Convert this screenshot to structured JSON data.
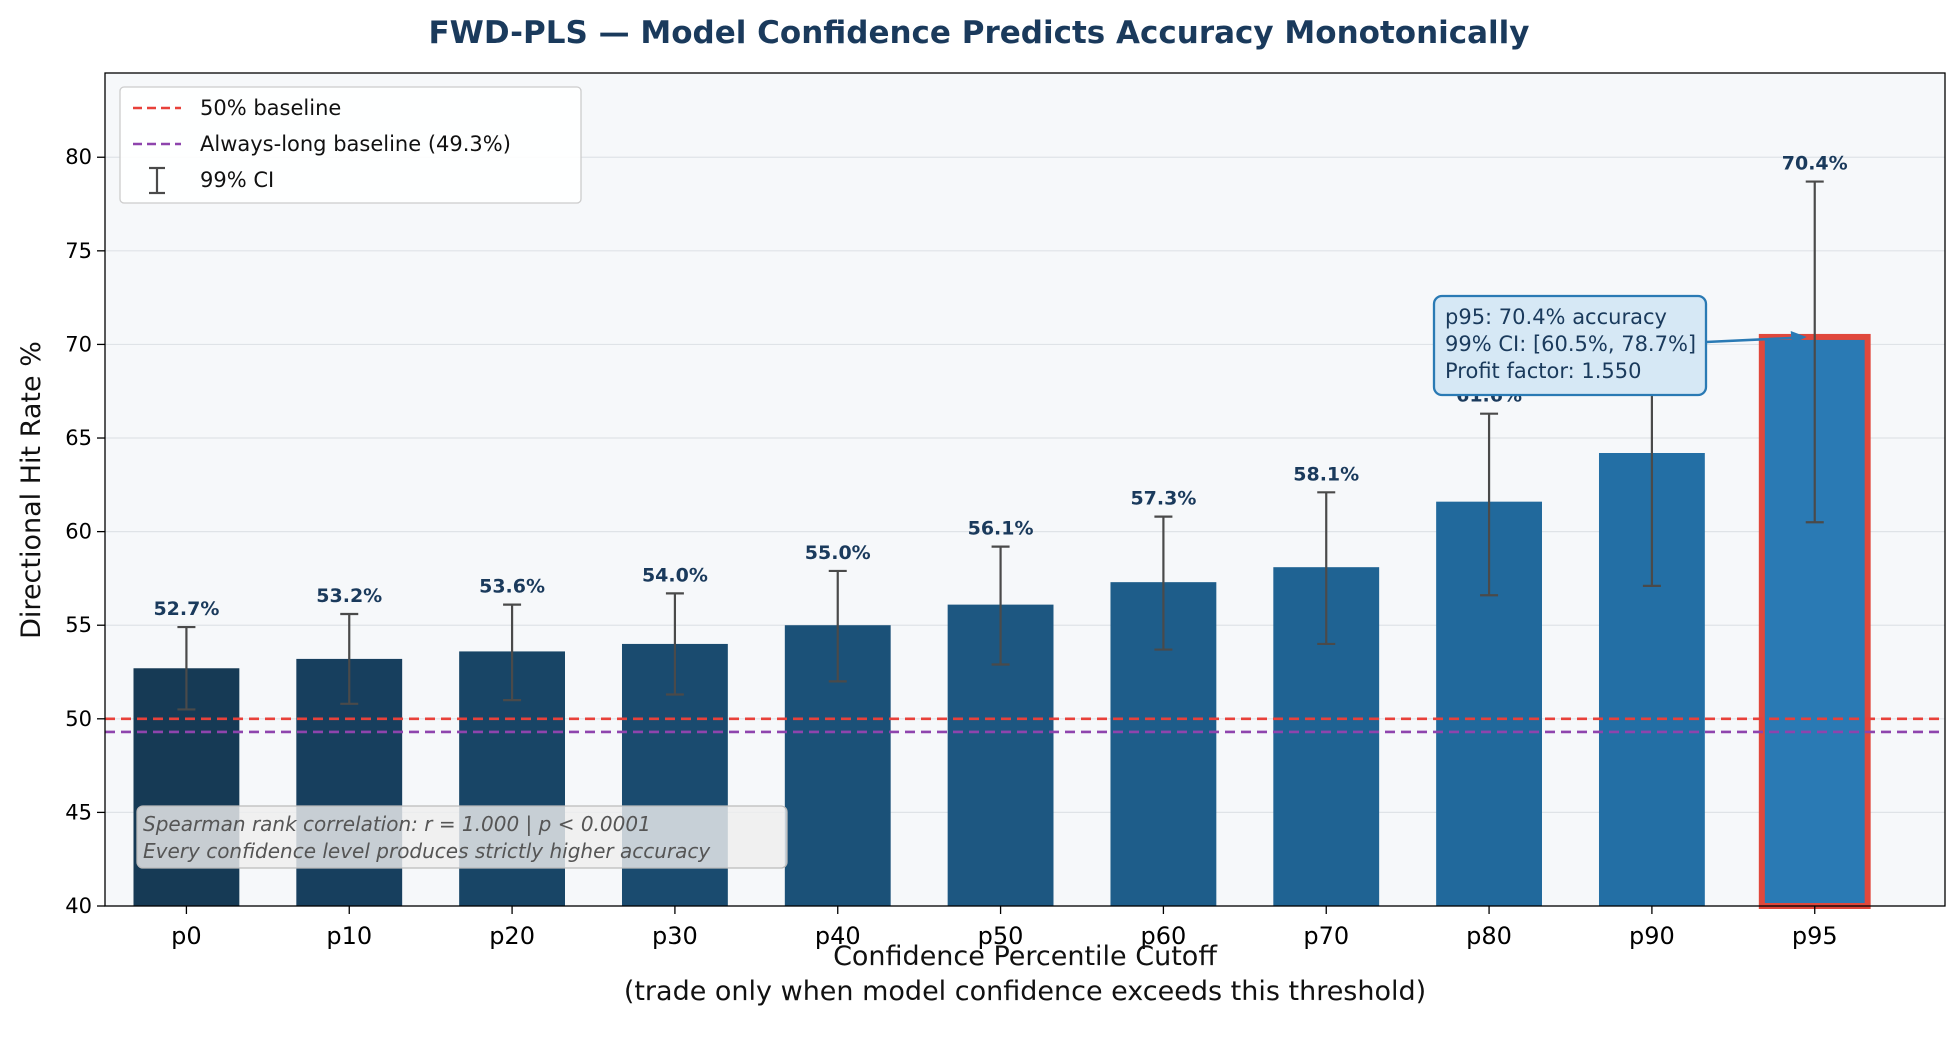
{
  "chart_data": {
    "type": "bar",
    "title": "FWD-PLS — Model Confidence Predicts Accuracy Monotonically",
    "xlabel": "Confidence Percentile Cutoff",
    "xlabel_sub": "(trade only when model confidence exceeds this threshold)",
    "ylabel": "Directional Hit Rate %",
    "ylim": [
      40,
      84.5
    ],
    "yticks": [
      40,
      45,
      50,
      55,
      60,
      65,
      70,
      75,
      80
    ],
    "grid": "y",
    "categories": [
      "p0",
      "p10",
      "p20",
      "p30",
      "p40",
      "p50",
      "p60",
      "p70",
      "p80",
      "p90",
      "p95"
    ],
    "series": [
      {
        "values": [
          52.7,
          53.2,
          53.6,
          54.0,
          55.0,
          56.1,
          57.3,
          58.1,
          61.6,
          64.2,
          70.4
        ],
        "value_labels": [
          "52.7%",
          "53.2%",
          "53.6%",
          "54.0%",
          "55.0%",
          "56.1%",
          "57.3%",
          "58.1%",
          "61.6%",
          "",
          "70.4%"
        ],
        "ci_low": [
          50.5,
          50.8,
          51.0,
          51.3,
          52.0,
          52.9,
          53.7,
          54.0,
          56.6,
          57.1,
          60.5
        ],
        "ci_high": [
          54.9,
          55.6,
          56.1,
          56.7,
          57.9,
          59.2,
          60.8,
          62.1,
          66.3,
          70.8,
          78.7
        ],
        "colors": [
          "#163a55",
          "#173f5e",
          "#184566",
          "#1a4b6f",
          "#1b5178",
          "#1d5781",
          "#1e5d8a",
          "#1f6393",
          "#21699c",
          "#236fa5",
          "#2a7ab4"
        ]
      }
    ],
    "highlight": {
      "category": "p95",
      "edge_color": "#e0483c"
    },
    "baselines": [
      {
        "label": "50% baseline",
        "value": 50.0,
        "color": "#e8413a"
      },
      {
        "label": "Always-long baseline (49.3%)",
        "value": 49.3,
        "color": "#8e44ad"
      }
    ],
    "legend": {
      "position": "top-left",
      "entries": [
        "50% baseline",
        "Always-long baseline (49.3%)",
        "99% CI"
      ]
    },
    "annotations": {
      "stats_box": {
        "line1": "Spearman rank correlation: r = 1.000  |  p < 0.0001",
        "line2": "Every confidence level produces strictly higher accuracy"
      },
      "callout": {
        "line1": "p95: 70.4% accuracy",
        "line2": "99% CI: [60.5%, 78.7%]",
        "line3": "Profit factor: 1.550"
      }
    },
    "colors": {
      "title": "#1a3a5c",
      "value_label": "#1a3a5c",
      "errorbar": "#4a4a4a",
      "plot_bg": "#f6f8fa",
      "grid": "#dfe3e7",
      "callout_border": "#2a7ab4",
      "callout_bg": "#d6e8f5",
      "callout_text": "#1a3a5c"
    }
  }
}
